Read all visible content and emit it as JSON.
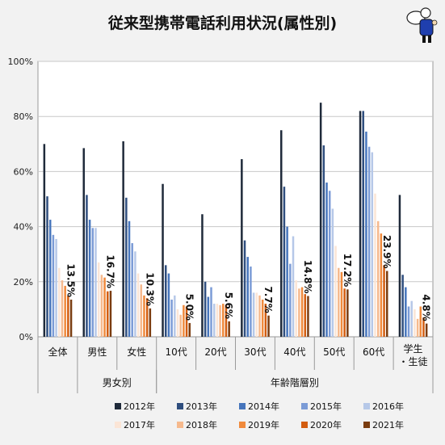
{
  "chart_data": {
    "type": "bar",
    "title": "従来型携帯電話利用状況(属性別)",
    "ylim": [
      0,
      100
    ],
    "yticks": [
      "0%",
      "20%",
      "40%",
      "60%",
      "80%",
      "100%"
    ],
    "categories": [
      "全体",
      "男性",
      "女性",
      "10代",
      "20代",
      "30代",
      "40代",
      "50代",
      "60代",
      "学生・生徒"
    ],
    "group_labels": [
      {
        "label": "男女別",
        "categories": [
          "男性",
          "女性"
        ]
      },
      {
        "label": "年齢階層別",
        "categories": [
          "10代",
          "20代",
          "30代",
          "40代",
          "50代",
          "60代",
          "学生・生徒"
        ]
      }
    ],
    "series": [
      {
        "name": "2012年",
        "color": "#1f2a3a",
        "values": [
          70,
          68.5,
          71,
          55.5,
          44.5,
          64.5,
          75,
          85,
          82,
          51.5
        ]
      },
      {
        "name": "2013年",
        "color": "#2f4e7e",
        "values": [
          51,
          51.5,
          50.5,
          26,
          20,
          35,
          54.5,
          69.5,
          82,
          22.5
        ]
      },
      {
        "name": "2014年",
        "color": "#4675bc",
        "values": [
          42.5,
          42.5,
          42,
          23,
          14.5,
          29,
          40,
          56,
          74.5,
          18
        ]
      },
      {
        "name": "2015年",
        "color": "#7b9bd6",
        "values": [
          37,
          39.5,
          34,
          13.5,
          18,
          25.5,
          26.5,
          53,
          69,
          11
        ]
      },
      {
        "name": "2016年",
        "color": "#b6c8e8",
        "values": [
          35.5,
          39.5,
          31,
          15,
          12,
          16,
          36.5,
          46.5,
          67,
          13
        ]
      },
      {
        "name": "2017年",
        "color": "#fbe5d6",
        "values": [
          25,
          27,
          23,
          10,
          12,
          16,
          20.5,
          33,
          52,
          10
        ]
      },
      {
        "name": "2018年",
        "color": "#f6b98d",
        "values": [
          20.5,
          22.5,
          19,
          8,
          11.5,
          15,
          17.5,
          25,
          42,
          6.5
        ]
      },
      {
        "name": "2019年",
        "color": "#f08a3c",
        "values": [
          18.5,
          21.5,
          15,
          11.5,
          12,
          13.5,
          18,
          23.5,
          37.5,
          11
        ]
      },
      {
        "name": "2020年",
        "color": "#d35d10",
        "values": [
          15,
          16.5,
          14,
          11,
          11.5,
          12,
          15.5,
          17.5,
          26,
          7
        ]
      },
      {
        "name": "2021年",
        "color": "#7a3c10",
        "values": [
          13.5,
          16.7,
          10.3,
          5.0,
          5.6,
          7.7,
          14.8,
          17.2,
          23.9,
          4.8
        ]
      }
    ],
    "data_labels": [
      "13.5%",
      "16.7%",
      "10.3%",
      "5.0%",
      "5.6%",
      "7.7%",
      "14.8%",
      "17.2%",
      "23.9%",
      "4.8%"
    ],
    "grid": true,
    "legend": "bottom"
  }
}
